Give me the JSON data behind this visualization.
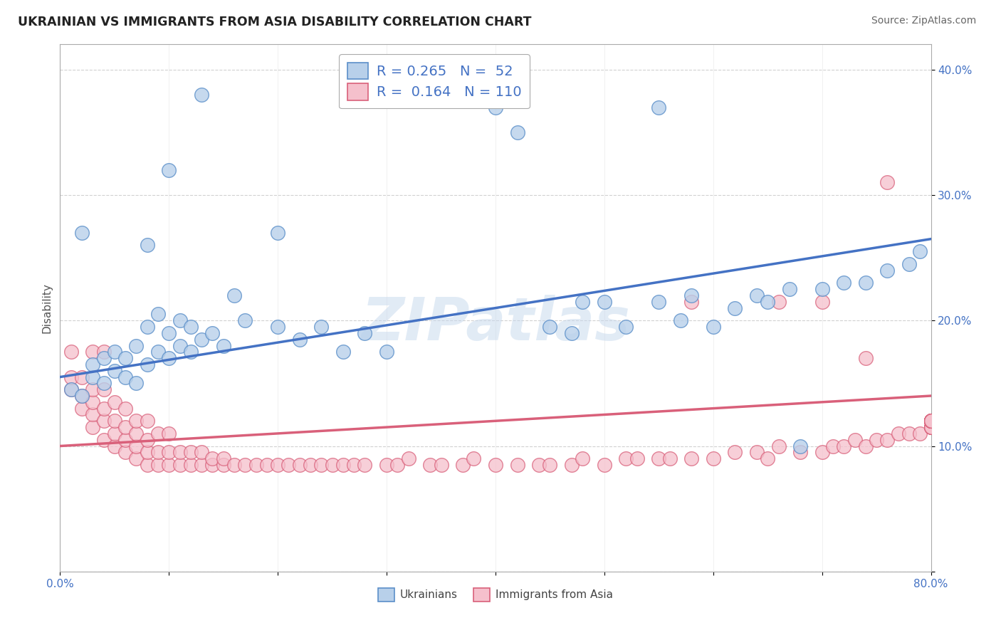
{
  "title": "UKRAINIAN VS IMMIGRANTS FROM ASIA DISABILITY CORRELATION CHART",
  "source": "Source: ZipAtlas.com",
  "ylabel": "Disability",
  "xlim": [
    0.0,
    0.8
  ],
  "ylim": [
    0.0,
    0.42
  ],
  "xtick_vals": [
    0.0,
    0.1,
    0.2,
    0.3,
    0.4,
    0.5,
    0.6,
    0.7,
    0.8
  ],
  "xticklabels": [
    "0.0%",
    "",
    "",
    "",
    "",
    "",
    "",
    "",
    "80.0%"
  ],
  "ytick_vals": [
    0.0,
    0.1,
    0.2,
    0.3,
    0.4
  ],
  "yticklabels": [
    "",
    "10.0%",
    "20.0%",
    "30.0%",
    "40.0%"
  ],
  "blue_fill": "#b8d0ea",
  "blue_edge": "#5b8fc9",
  "pink_fill": "#f5c0cc",
  "pink_edge": "#d9607a",
  "blue_line": "#4472c4",
  "pink_line": "#d9607a",
  "R_blue": 0.265,
  "N_blue": 52,
  "R_pink": 0.164,
  "N_pink": 110,
  "label_blue": "Ukrainians",
  "label_pink": "Immigrants from Asia",
  "watermark": "ZIPatlas",
  "bg": "#ffffff",
  "grid_color": "#cccccc",
  "blue_line_y0": 0.155,
  "blue_line_y1": 0.265,
  "pink_line_y0": 0.1,
  "pink_line_y1": 0.14,
  "blue_x": [
    0.01,
    0.02,
    0.03,
    0.03,
    0.04,
    0.04,
    0.05,
    0.05,
    0.06,
    0.06,
    0.07,
    0.07,
    0.08,
    0.08,
    0.09,
    0.09,
    0.1,
    0.1,
    0.11,
    0.11,
    0.12,
    0.12,
    0.13,
    0.14,
    0.15,
    0.16,
    0.17,
    0.2,
    0.22,
    0.24,
    0.26,
    0.28,
    0.3,
    0.45,
    0.47,
    0.48,
    0.5,
    0.52,
    0.55,
    0.57,
    0.58,
    0.6,
    0.62,
    0.64,
    0.65,
    0.67,
    0.7,
    0.72,
    0.74,
    0.76,
    0.78,
    0.79
  ],
  "blue_y": [
    0.145,
    0.14,
    0.155,
    0.165,
    0.15,
    0.17,
    0.16,
    0.175,
    0.155,
    0.17,
    0.15,
    0.18,
    0.165,
    0.195,
    0.175,
    0.205,
    0.17,
    0.19,
    0.18,
    0.2,
    0.175,
    0.195,
    0.185,
    0.19,
    0.18,
    0.22,
    0.2,
    0.195,
    0.185,
    0.195,
    0.175,
    0.19,
    0.175,
    0.195,
    0.19,
    0.215,
    0.215,
    0.195,
    0.215,
    0.2,
    0.22,
    0.195,
    0.21,
    0.22,
    0.215,
    0.225,
    0.225,
    0.23,
    0.23,
    0.24,
    0.245,
    0.255
  ],
  "blue_outliers_x": [
    0.02,
    0.08,
    0.1,
    0.13,
    0.2,
    0.4,
    0.42,
    0.55,
    0.68
  ],
  "blue_outliers_y": [
    0.27,
    0.26,
    0.32,
    0.38,
    0.27,
    0.37,
    0.35,
    0.37,
    0.1
  ],
  "pink_x": [
    0.01,
    0.01,
    0.02,
    0.02,
    0.02,
    0.03,
    0.03,
    0.03,
    0.03,
    0.04,
    0.04,
    0.04,
    0.04,
    0.05,
    0.05,
    0.05,
    0.05,
    0.06,
    0.06,
    0.06,
    0.06,
    0.07,
    0.07,
    0.07,
    0.07,
    0.08,
    0.08,
    0.08,
    0.08,
    0.09,
    0.09,
    0.09,
    0.1,
    0.1,
    0.1,
    0.11,
    0.11,
    0.12,
    0.12,
    0.13,
    0.13,
    0.14,
    0.14,
    0.15,
    0.15,
    0.16,
    0.17,
    0.18,
    0.19,
    0.2,
    0.21,
    0.22,
    0.23,
    0.24,
    0.25,
    0.26,
    0.27,
    0.28,
    0.3,
    0.31,
    0.32,
    0.34,
    0.35,
    0.37,
    0.38,
    0.4,
    0.42,
    0.44,
    0.45,
    0.47,
    0.48,
    0.5,
    0.52,
    0.53,
    0.55,
    0.56,
    0.58,
    0.6,
    0.62,
    0.64,
    0.65,
    0.66,
    0.68,
    0.7,
    0.71,
    0.72,
    0.73,
    0.74,
    0.75,
    0.76,
    0.77,
    0.78,
    0.79,
    0.8,
    0.8,
    0.8,
    0.8,
    0.8,
    0.8,
    0.8,
    0.8,
    0.8,
    0.8,
    0.8,
    0.8,
    0.8,
    0.8,
    0.8,
    0.8,
    0.8
  ],
  "pink_y": [
    0.145,
    0.155,
    0.13,
    0.14,
    0.155,
    0.115,
    0.125,
    0.135,
    0.145,
    0.105,
    0.12,
    0.13,
    0.145,
    0.1,
    0.11,
    0.12,
    0.135,
    0.095,
    0.105,
    0.115,
    0.13,
    0.09,
    0.1,
    0.11,
    0.12,
    0.085,
    0.095,
    0.105,
    0.12,
    0.085,
    0.095,
    0.11,
    0.085,
    0.095,
    0.11,
    0.085,
    0.095,
    0.085,
    0.095,
    0.085,
    0.095,
    0.085,
    0.09,
    0.085,
    0.09,
    0.085,
    0.085,
    0.085,
    0.085,
    0.085,
    0.085,
    0.085,
    0.085,
    0.085,
    0.085,
    0.085,
    0.085,
    0.085,
    0.085,
    0.085,
    0.09,
    0.085,
    0.085,
    0.085,
    0.09,
    0.085,
    0.085,
    0.085,
    0.085,
    0.085,
    0.09,
    0.085,
    0.09,
    0.09,
    0.09,
    0.09,
    0.09,
    0.09,
    0.095,
    0.095,
    0.09,
    0.1,
    0.095,
    0.095,
    0.1,
    0.1,
    0.105,
    0.1,
    0.105,
    0.105,
    0.11,
    0.11,
    0.11,
    0.115,
    0.115,
    0.115,
    0.115,
    0.115,
    0.12,
    0.12,
    0.12,
    0.12,
    0.12,
    0.12,
    0.12,
    0.12,
    0.12,
    0.12,
    0.12,
    0.12
  ],
  "pink_outliers_x": [
    0.01,
    0.03,
    0.04,
    0.58,
    0.66,
    0.7,
    0.74,
    0.76
  ],
  "pink_outliers_y": [
    0.175,
    0.175,
    0.175,
    0.215,
    0.215,
    0.215,
    0.17,
    0.31
  ]
}
